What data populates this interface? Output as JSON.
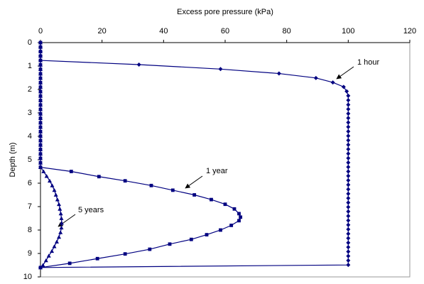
{
  "chart_data": {
    "type": "line",
    "x_label": "Excess pore pressure (kPa)",
    "y_label": "Depth (m)",
    "xlim": [
      0,
      120
    ],
    "xticks": [
      0,
      20,
      40,
      60,
      80,
      100,
      120
    ],
    "ylim": [
      0,
      10
    ],
    "yticks": [
      0,
      1,
      2,
      3,
      4,
      5,
      6,
      7,
      8,
      9,
      10
    ],
    "y_inverted": true,
    "x_axis_position": "top",
    "series": [
      {
        "name": "1 hour",
        "color": "#000080",
        "marker": "diamond",
        "x": [
          0,
          0,
          0,
          0,
          0,
          32,
          58.5,
          77.5,
          89.5,
          95,
          98.5,
          99.5,
          100,
          100,
          100,
          100,
          100,
          100,
          100,
          100,
          100,
          100,
          100,
          100,
          100,
          100,
          100,
          100,
          100,
          100,
          100,
          100,
          100,
          100,
          100,
          100,
          100,
          100,
          100,
          100,
          100,
          100,
          100,
          100,
          100,
          100,
          100,
          100,
          100,
          100,
          100,
          0
        ],
        "values": [
          0,
          0.19,
          0.38,
          0.57,
          0.76,
          0.94,
          1.13,
          1.32,
          1.51,
          1.7,
          1.89,
          2.08,
          2.27,
          2.46,
          2.65,
          2.84,
          3.03,
          3.22,
          3.41,
          3.6,
          3.79,
          3.98,
          4.17,
          4.36,
          4.55,
          4.74,
          4.93,
          5.12,
          5.31,
          5.5,
          5.69,
          5.88,
          6.07,
          6.26,
          6.45,
          6.64,
          6.83,
          7.02,
          7.21,
          7.4,
          7.59,
          7.78,
          7.97,
          8.16,
          8.35,
          8.54,
          8.73,
          8.92,
          9.11,
          9.3,
          9.49,
          9.6
        ]
      },
      {
        "name": "1 year",
        "color": "#000080",
        "marker": "square",
        "x": [
          0,
          0,
          0,
          0,
          0,
          0,
          0,
          0,
          0,
          0,
          0,
          0,
          0,
          0,
          0,
          0,
          0,
          0,
          0,
          0,
          0,
          0,
          0,
          0,
          0,
          0,
          0,
          0,
          0,
          10,
          19,
          27.5,
          36,
          43,
          50,
          55.5,
          60,
          63,
          64.5,
          65,
          64.5,
          62,
          58.5,
          54,
          49,
          42,
          35.5,
          27.5,
          18.5,
          9.5,
          0
        ],
        "values": [
          0,
          0.19,
          0.38,
          0.57,
          0.76,
          0.95,
          1.14,
          1.33,
          1.52,
          1.71,
          1.9,
          2.09,
          2.28,
          2.47,
          2.66,
          2.85,
          3.04,
          3.23,
          3.42,
          3.61,
          3.8,
          3.99,
          4.18,
          4.37,
          4.56,
          4.75,
          4.94,
          5.13,
          5.32,
          5.5,
          5.72,
          5.9,
          6.1,
          6.3,
          6.5,
          6.7,
          6.9,
          7.1,
          7.3,
          7.45,
          7.6,
          7.8,
          8,
          8.2,
          8.4,
          8.6,
          8.82,
          9.02,
          9.22,
          9.42,
          9.6
        ]
      },
      {
        "name": "5 years",
        "color": "#000080",
        "marker": "triangle",
        "x": [
          0,
          0,
          0,
          0,
          0,
          0,
          0,
          0,
          0,
          0,
          0,
          0,
          0,
          0,
          0,
          0,
          0,
          0,
          0,
          0,
          0,
          0,
          0,
          0,
          0,
          0,
          0,
          0,
          0,
          1,
          2,
          3,
          3.8,
          4.5,
          5,
          5.5,
          6,
          6.3,
          6.6,
          6.8,
          6.9,
          6.8,
          6.5,
          6,
          5.3,
          4.5,
          3.7,
          2.7,
          1.8,
          0.8,
          0
        ],
        "values": [
          0,
          0.19,
          0.38,
          0.57,
          0.76,
          0.95,
          1.14,
          1.33,
          1.52,
          1.71,
          1.9,
          2.09,
          2.28,
          2.47,
          2.66,
          2.85,
          3.04,
          3.23,
          3.42,
          3.61,
          3.8,
          3.99,
          4.18,
          4.37,
          4.56,
          4.75,
          4.94,
          5.13,
          5.32,
          5.5,
          5.7,
          5.9,
          6.1,
          6.3,
          6.5,
          6.7,
          6.9,
          7.1,
          7.3,
          7.5,
          7.7,
          7.9,
          8.1,
          8.3,
          8.5,
          8.7,
          8.9,
          9.1,
          9.3,
          9.5,
          9.6
        ]
      }
    ]
  }
}
